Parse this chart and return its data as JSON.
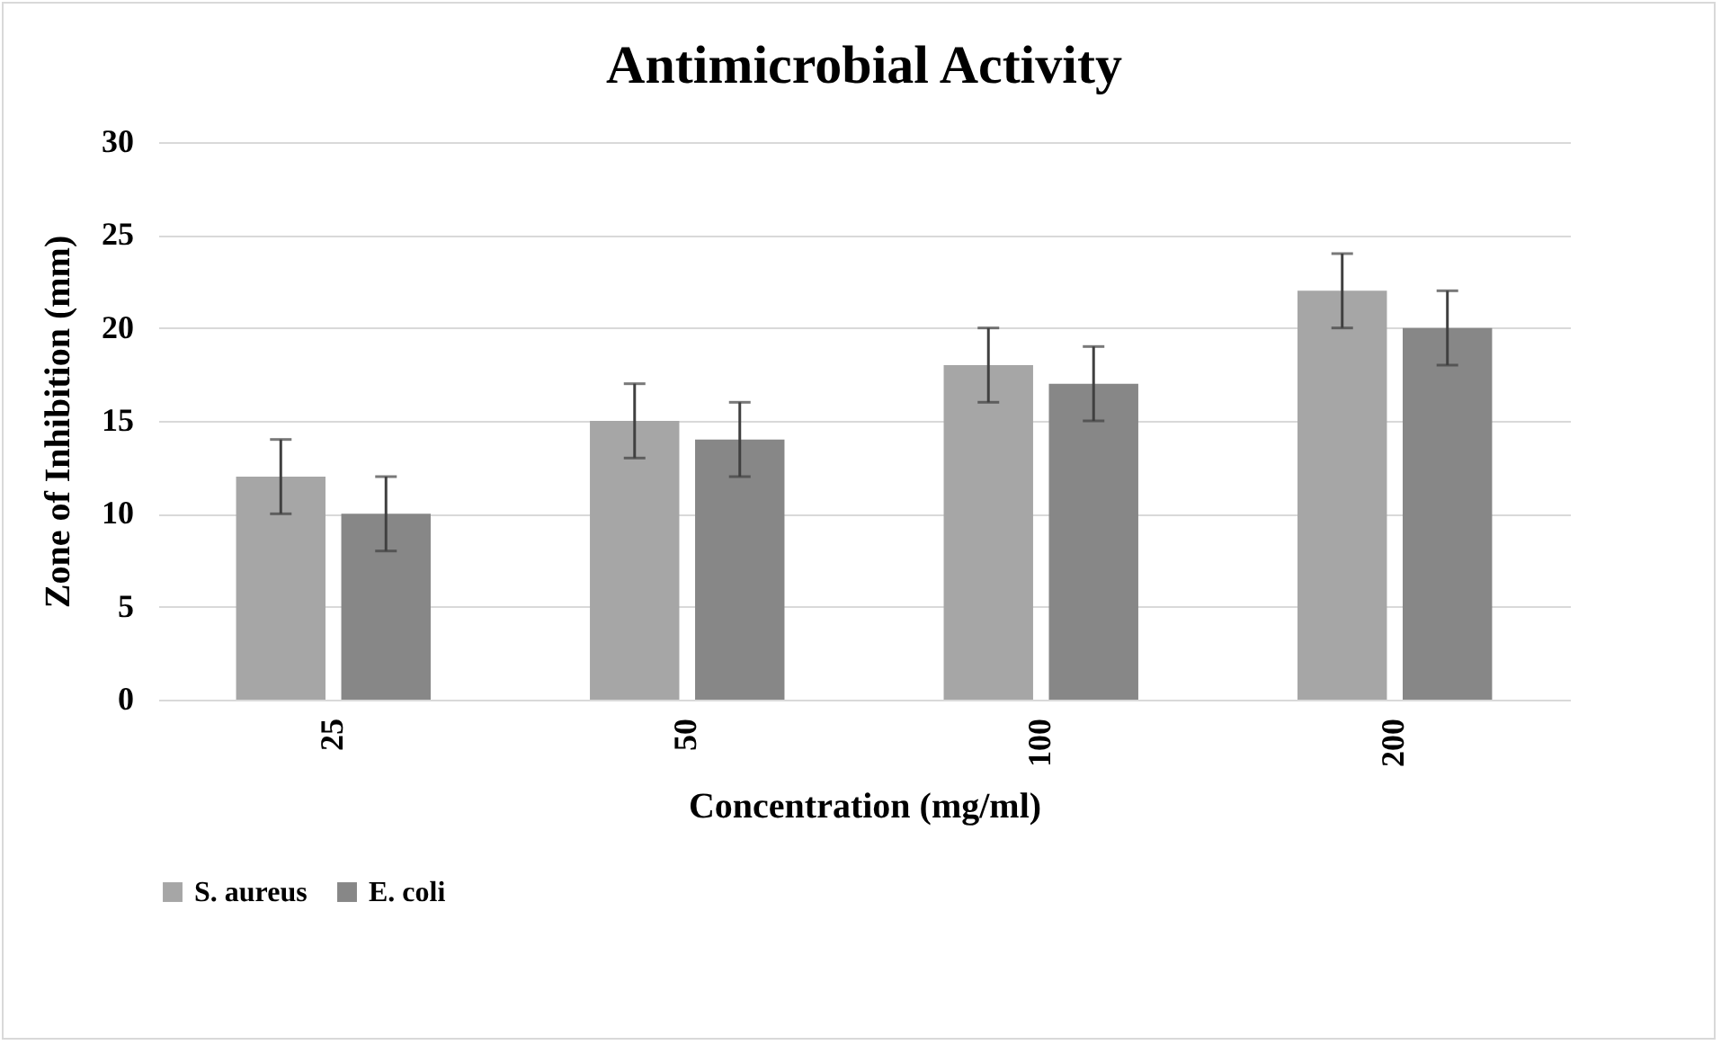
{
  "chart_data": {
    "type": "bar",
    "title": "Antimicrobial Activity",
    "xlabel": "Concentration (mg/ml)",
    "ylabel": "Zone of Inhibition (mm)",
    "categories": [
      "25",
      "50",
      "100",
      "200"
    ],
    "series": [
      {
        "name": "S. aureus",
        "color": "#a6a6a6",
        "values": [
          12,
          15,
          18,
          22
        ],
        "errors": [
          2,
          2,
          2,
          2
        ]
      },
      {
        "name": "E. coli",
        "color": "#878787",
        "values": [
          10,
          14,
          17,
          20
        ],
        "errors": [
          2,
          2,
          2,
          2
        ]
      }
    ],
    "ylim": [
      0,
      30
    ],
    "yticks": [
      0,
      5,
      10,
      15,
      20,
      25,
      30
    ],
    "grid": "y",
    "legend": "bottom"
  }
}
